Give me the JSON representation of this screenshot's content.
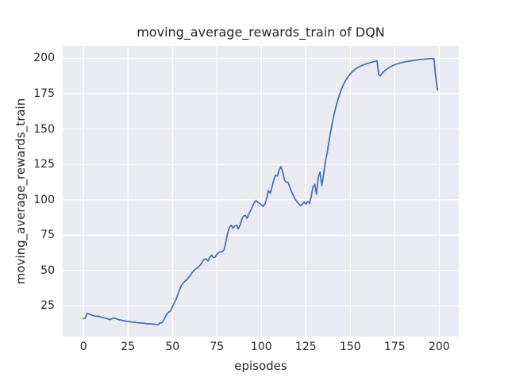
{
  "figure": {
    "title": "moving_average_rewards_train of DQN",
    "xlabel": "episodes",
    "ylabel": "moving_average_rewards_train"
  },
  "chart_data": {
    "type": "line",
    "title": "moving_average_rewards_train of DQN",
    "xlabel": "episodes",
    "ylabel": "moving_average_rewards_train",
    "x_ticks": [
      0,
      25,
      50,
      75,
      100,
      125,
      150,
      175,
      200
    ],
    "y_ticks": [
      25,
      50,
      75,
      100,
      125,
      150,
      175,
      200
    ],
    "xlim": [
      -11.7,
      211.0
    ],
    "ylim": [
      3.4,
      208.6
    ],
    "grid": true,
    "legend_position": "none",
    "style": {
      "line_color": "#4C72B0",
      "line_width": 1.8,
      "plot_bg": "#EAEAF2",
      "grid_color": "#ffffff",
      "text_color": "#262626",
      "figure_bg": "#ffffff"
    },
    "series": [
      {
        "name": "moving_average_rewards_train",
        "points": [
          [
            0,
            16.0
          ],
          [
            1,
            16.3
          ],
          [
            2,
            19.8
          ],
          [
            3,
            19.4
          ],
          [
            4,
            18.8
          ],
          [
            5,
            18.4
          ],
          [
            6,
            18.0
          ],
          [
            7,
            17.7
          ],
          [
            8,
            17.9
          ],
          [
            9,
            17.4
          ],
          [
            10,
            17.1
          ],
          [
            11,
            16.8
          ],
          [
            12,
            16.6
          ],
          [
            13,
            16.1
          ],
          [
            14,
            15.8
          ],
          [
            15,
            15.4
          ],
          [
            16,
            16.0
          ],
          [
            17,
            16.6
          ],
          [
            18,
            16.2
          ],
          [
            19,
            15.7
          ],
          [
            20,
            15.3
          ],
          [
            21,
            15.0
          ],
          [
            22,
            14.7
          ],
          [
            23,
            14.5
          ],
          [
            24,
            14.3
          ],
          [
            25,
            14.1
          ],
          [
            26,
            14.0
          ],
          [
            27,
            13.7
          ],
          [
            28,
            13.5
          ],
          [
            29,
            13.6
          ],
          [
            30,
            13.2
          ],
          [
            31,
            13.1
          ],
          [
            32,
            13.0
          ],
          [
            33,
            12.9
          ],
          [
            34,
            12.8
          ],
          [
            35,
            12.6
          ],
          [
            36,
            12.5
          ],
          [
            37,
            12.4
          ],
          [
            38,
            12.3
          ],
          [
            39,
            12.2
          ],
          [
            40,
            12.1
          ],
          [
            41,
            11.9
          ],
          [
            42,
            11.8
          ],
          [
            43,
            13.0
          ],
          [
            44,
            13.1
          ],
          [
            45,
            14.9
          ],
          [
            46,
            17.2
          ],
          [
            47,
            19.6
          ],
          [
            48,
            20.7
          ],
          [
            49,
            21.5
          ],
          [
            50,
            24.5
          ],
          [
            51,
            27.0
          ],
          [
            52,
            29.5
          ],
          [
            53,
            33.0
          ],
          [
            54,
            36.5
          ],
          [
            55,
            39.5
          ],
          [
            56,
            41.0
          ],
          [
            57,
            42.5
          ],
          [
            58,
            43.5
          ],
          [
            59,
            45.0
          ],
          [
            60,
            46.5
          ],
          [
            61,
            48.5
          ],
          [
            62,
            50.0
          ],
          [
            63,
            51.0
          ],
          [
            64,
            51.8
          ],
          [
            65,
            53.0
          ],
          [
            66,
            54.5
          ],
          [
            67,
            56.5
          ],
          [
            68,
            58.0
          ],
          [
            69,
            58.2
          ],
          [
            70,
            56.8
          ],
          [
            71,
            59.5
          ],
          [
            72,
            61.0
          ],
          [
            73,
            59.2
          ],
          [
            74,
            59.5
          ],
          [
            75,
            61.5
          ],
          [
            76,
            62.7
          ],
          [
            77,
            63.2
          ],
          [
            78,
            63.6
          ],
          [
            79,
            64.5
          ],
          [
            80,
            70.0
          ],
          [
            81,
            76.0
          ],
          [
            82,
            80.5
          ],
          [
            83,
            82.0
          ],
          [
            84,
            80.0
          ],
          [
            85,
            81.5
          ],
          [
            86,
            82.0
          ],
          [
            87,
            79.5
          ],
          [
            88,
            82.0
          ],
          [
            89,
            86.0
          ],
          [
            90,
            88.5
          ],
          [
            91,
            89.0
          ],
          [
            92,
            87.0
          ],
          [
            93,
            90.0
          ],
          [
            94,
            92.5
          ],
          [
            95,
            95.3
          ],
          [
            96,
            98.0
          ],
          [
            97,
            99.5
          ],
          [
            98,
            98.2
          ],
          [
            99,
            97.5
          ],
          [
            100,
            96.5
          ],
          [
            101,
            95.3
          ],
          [
            102,
            97.0
          ],
          [
            103,
            101.0
          ],
          [
            104,
            106.5
          ],
          [
            105,
            104.6
          ],
          [
            106,
            109.0
          ],
          [
            107,
            114.0
          ],
          [
            108,
            117.5
          ],
          [
            109,
            116.8
          ],
          [
            110,
            121.0
          ],
          [
            111,
            123.4
          ],
          [
            112,
            119.6
          ],
          [
            113,
            114.0
          ],
          [
            114,
            112.4
          ],
          [
            115,
            112.3
          ],
          [
            116,
            109.0
          ],
          [
            117,
            105.6
          ],
          [
            118,
            103.0
          ],
          [
            119,
            100.3
          ],
          [
            120,
            98.8
          ],
          [
            121,
            97.2
          ],
          [
            122,
            95.8
          ],
          [
            123,
            96.8
          ],
          [
            124,
            98.5
          ],
          [
            125,
            97.0
          ],
          [
            126,
            98.8
          ],
          [
            127,
            97.5
          ],
          [
            128,
            102.0
          ],
          [
            129,
            109.0
          ],
          [
            130,
            111.0
          ],
          [
            131,
            104.0
          ],
          [
            132,
            116.0
          ],
          [
            133,
            119.5
          ],
          [
            134,
            110.0
          ],
          [
            135,
            118.0
          ],
          [
            136,
            127.0
          ],
          [
            137,
            133.0
          ],
          [
            138,
            141.0
          ],
          [
            139,
            148.5
          ],
          [
            140,
            155.0
          ],
          [
            141,
            161.0
          ],
          [
            142,
            166.0
          ],
          [
            143,
            170.5
          ],
          [
            144,
            174.5
          ],
          [
            145,
            178.0
          ],
          [
            146,
            181.0
          ],
          [
            147,
            183.5
          ],
          [
            148,
            185.5
          ],
          [
            149,
            187.3
          ],
          [
            150,
            189.0
          ],
          [
            151,
            190.3
          ],
          [
            152,
            191.4
          ],
          [
            153,
            192.4
          ],
          [
            154,
            193.2
          ],
          [
            155,
            193.9
          ],
          [
            156,
            194.5
          ],
          [
            157,
            195.1
          ],
          [
            158,
            195.6
          ],
          [
            159,
            196.0
          ],
          [
            160,
            196.4
          ],
          [
            161,
            196.8
          ],
          [
            162,
            197.1
          ],
          [
            163,
            197.5
          ],
          [
            164,
            197.8
          ],
          [
            165,
            198.2
          ],
          [
            166,
            188.3
          ],
          [
            167,
            187.6
          ],
          [
            168,
            189.5
          ],
          [
            169,
            190.7
          ],
          [
            170,
            191.8
          ],
          [
            171,
            192.7
          ],
          [
            172,
            193.5
          ],
          [
            173,
            194.2
          ],
          [
            174,
            194.8
          ],
          [
            175,
            195.3
          ],
          [
            176,
            195.8
          ],
          [
            177,
            196.2
          ],
          [
            178,
            196.6
          ],
          [
            179,
            196.9
          ],
          [
            180,
            197.2
          ],
          [
            181,
            197.5
          ],
          [
            182,
            197.7
          ],
          [
            183,
            197.9
          ],
          [
            184,
            198.1
          ],
          [
            185,
            198.3
          ],
          [
            186,
            198.5
          ],
          [
            187,
            198.7
          ],
          [
            188,
            198.9
          ],
          [
            189,
            199.0
          ],
          [
            190,
            199.2
          ],
          [
            191,
            199.3
          ],
          [
            192,
            199.4
          ],
          [
            193,
            199.5
          ],
          [
            194,
            199.6
          ],
          [
            195,
            199.7
          ],
          [
            196,
            199.7
          ],
          [
            197,
            199.8
          ],
          [
            198,
            187.0
          ],
          [
            199,
            177.5
          ]
        ]
      }
    ]
  }
}
